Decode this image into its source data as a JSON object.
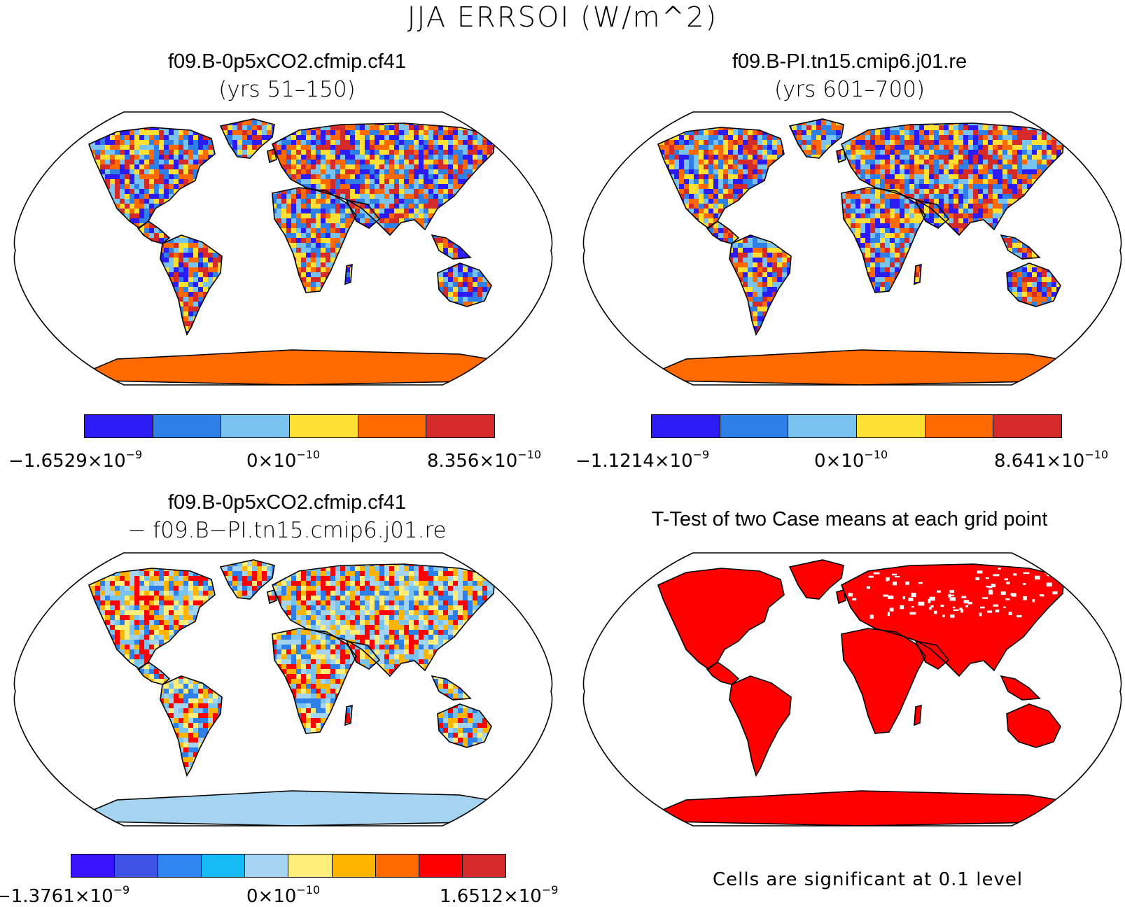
{
  "title": "JJA ERRSOI (W/m^2)",
  "panels": [
    {
      "title": "f09.B-0p5xCO2.cfmip.cf41",
      "subtitle": "(yrs 51–150)",
      "antarctica_color": "#ff6a00",
      "land_palette": [
        "#2d1bf5",
        "#2f7fe8",
        "#79c4ee",
        "#ffe033",
        "#ff6a00",
        "#d42a2a"
      ],
      "colorbar": {
        "colors": [
          "#2d1bf5",
          "#2f7fe8",
          "#79c4ee",
          "#ffe033",
          "#ff6a00",
          "#d42a2a"
        ],
        "labels": [
          {
            "mant": "−1.6529×10",
            "exp": "−9"
          },
          {
            "mant": "0×10",
            "exp": "−10"
          },
          {
            "mant": "8.356×10",
            "exp": "−10"
          }
        ]
      }
    },
    {
      "title": "f09.B-PI.tn15.cmip6.j01.re",
      "subtitle": "(yrs 601–700)",
      "antarctica_color": "#ff6a00",
      "land_palette": [
        "#2d1bf5",
        "#2f7fe8",
        "#79c4ee",
        "#ffe033",
        "#ff6a00",
        "#d42a2a"
      ],
      "colorbar": {
        "colors": [
          "#2d1bf5",
          "#2f7fe8",
          "#79c4ee",
          "#ffe033",
          "#ff6a00",
          "#d42a2a"
        ],
        "labels": [
          {
            "mant": "−1.1214×10",
            "exp": "−9"
          },
          {
            "mant": "0×10",
            "exp": "−10"
          },
          {
            "mant": "8.641×10",
            "exp": "−10"
          }
        ]
      }
    },
    {
      "title": "f09.B-0p5xCO2.cfmip.cf41",
      "subtitle": "− f09.B−PI.tn15.cmip6.j01.re",
      "antarctica_color": "#a5d4f0",
      "land_palette": [
        "#2f7fe8",
        "#79c4ee",
        "#a5d4f0",
        "#ffef7a",
        "#ffb400",
        "#ff0000"
      ],
      "colorbar": {
        "colors": [
          "#3a14ff",
          "#3e52e6",
          "#2f86f0",
          "#16baf5",
          "#a5d4f0",
          "#ffef7a",
          "#ffb400",
          "#ff6a00",
          "#ff0000",
          "#d42a2a"
        ],
        "labels": [
          {
            "mant": "−1.3761×10",
            "exp": "−9"
          },
          {
            "mant": "0×10",
            "exp": "−10"
          },
          {
            "mant": "1.6512×10",
            "exp": "−9"
          }
        ]
      }
    },
    {
      "title": "T-Test of two Case means at each grid point",
      "subtitle": "",
      "antarctica_color": "#ff0000",
      "land_palette": [
        "#ff0000"
      ],
      "footnote": "Cells are significant at 0.1 level"
    }
  ]
}
